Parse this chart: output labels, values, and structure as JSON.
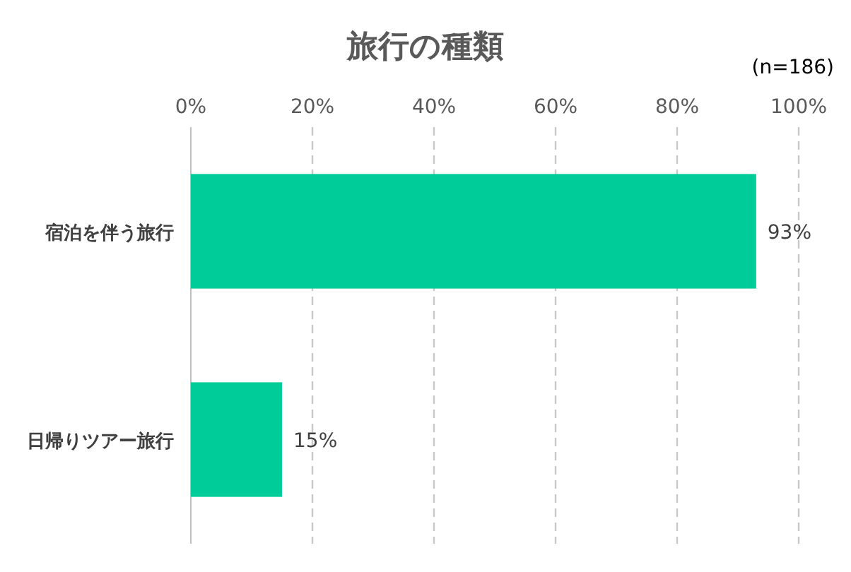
{
  "chart_data": {
    "type": "bar",
    "orientation": "horizontal",
    "title": "旅行の種類",
    "annotations": [
      "(n=186)"
    ],
    "categories": [
      "宿泊を伴う旅行",
      "日帰りツアー旅行"
    ],
    "values": [
      93,
      15
    ],
    "value_labels": [
      "93%",
      "15%"
    ],
    "color": "#00cc99",
    "xlim": [
      0,
      100
    ],
    "xticks": [
      {
        "value": 0,
        "label": "0%"
      },
      {
        "value": 20,
        "label": "20%"
      },
      {
        "value": 40,
        "label": "40%"
      },
      {
        "value": 60,
        "label": "60%"
      },
      {
        "value": 80,
        "label": "80%"
      },
      {
        "value": 100,
        "label": "100%"
      }
    ],
    "grid": "x",
    "legend": false
  }
}
